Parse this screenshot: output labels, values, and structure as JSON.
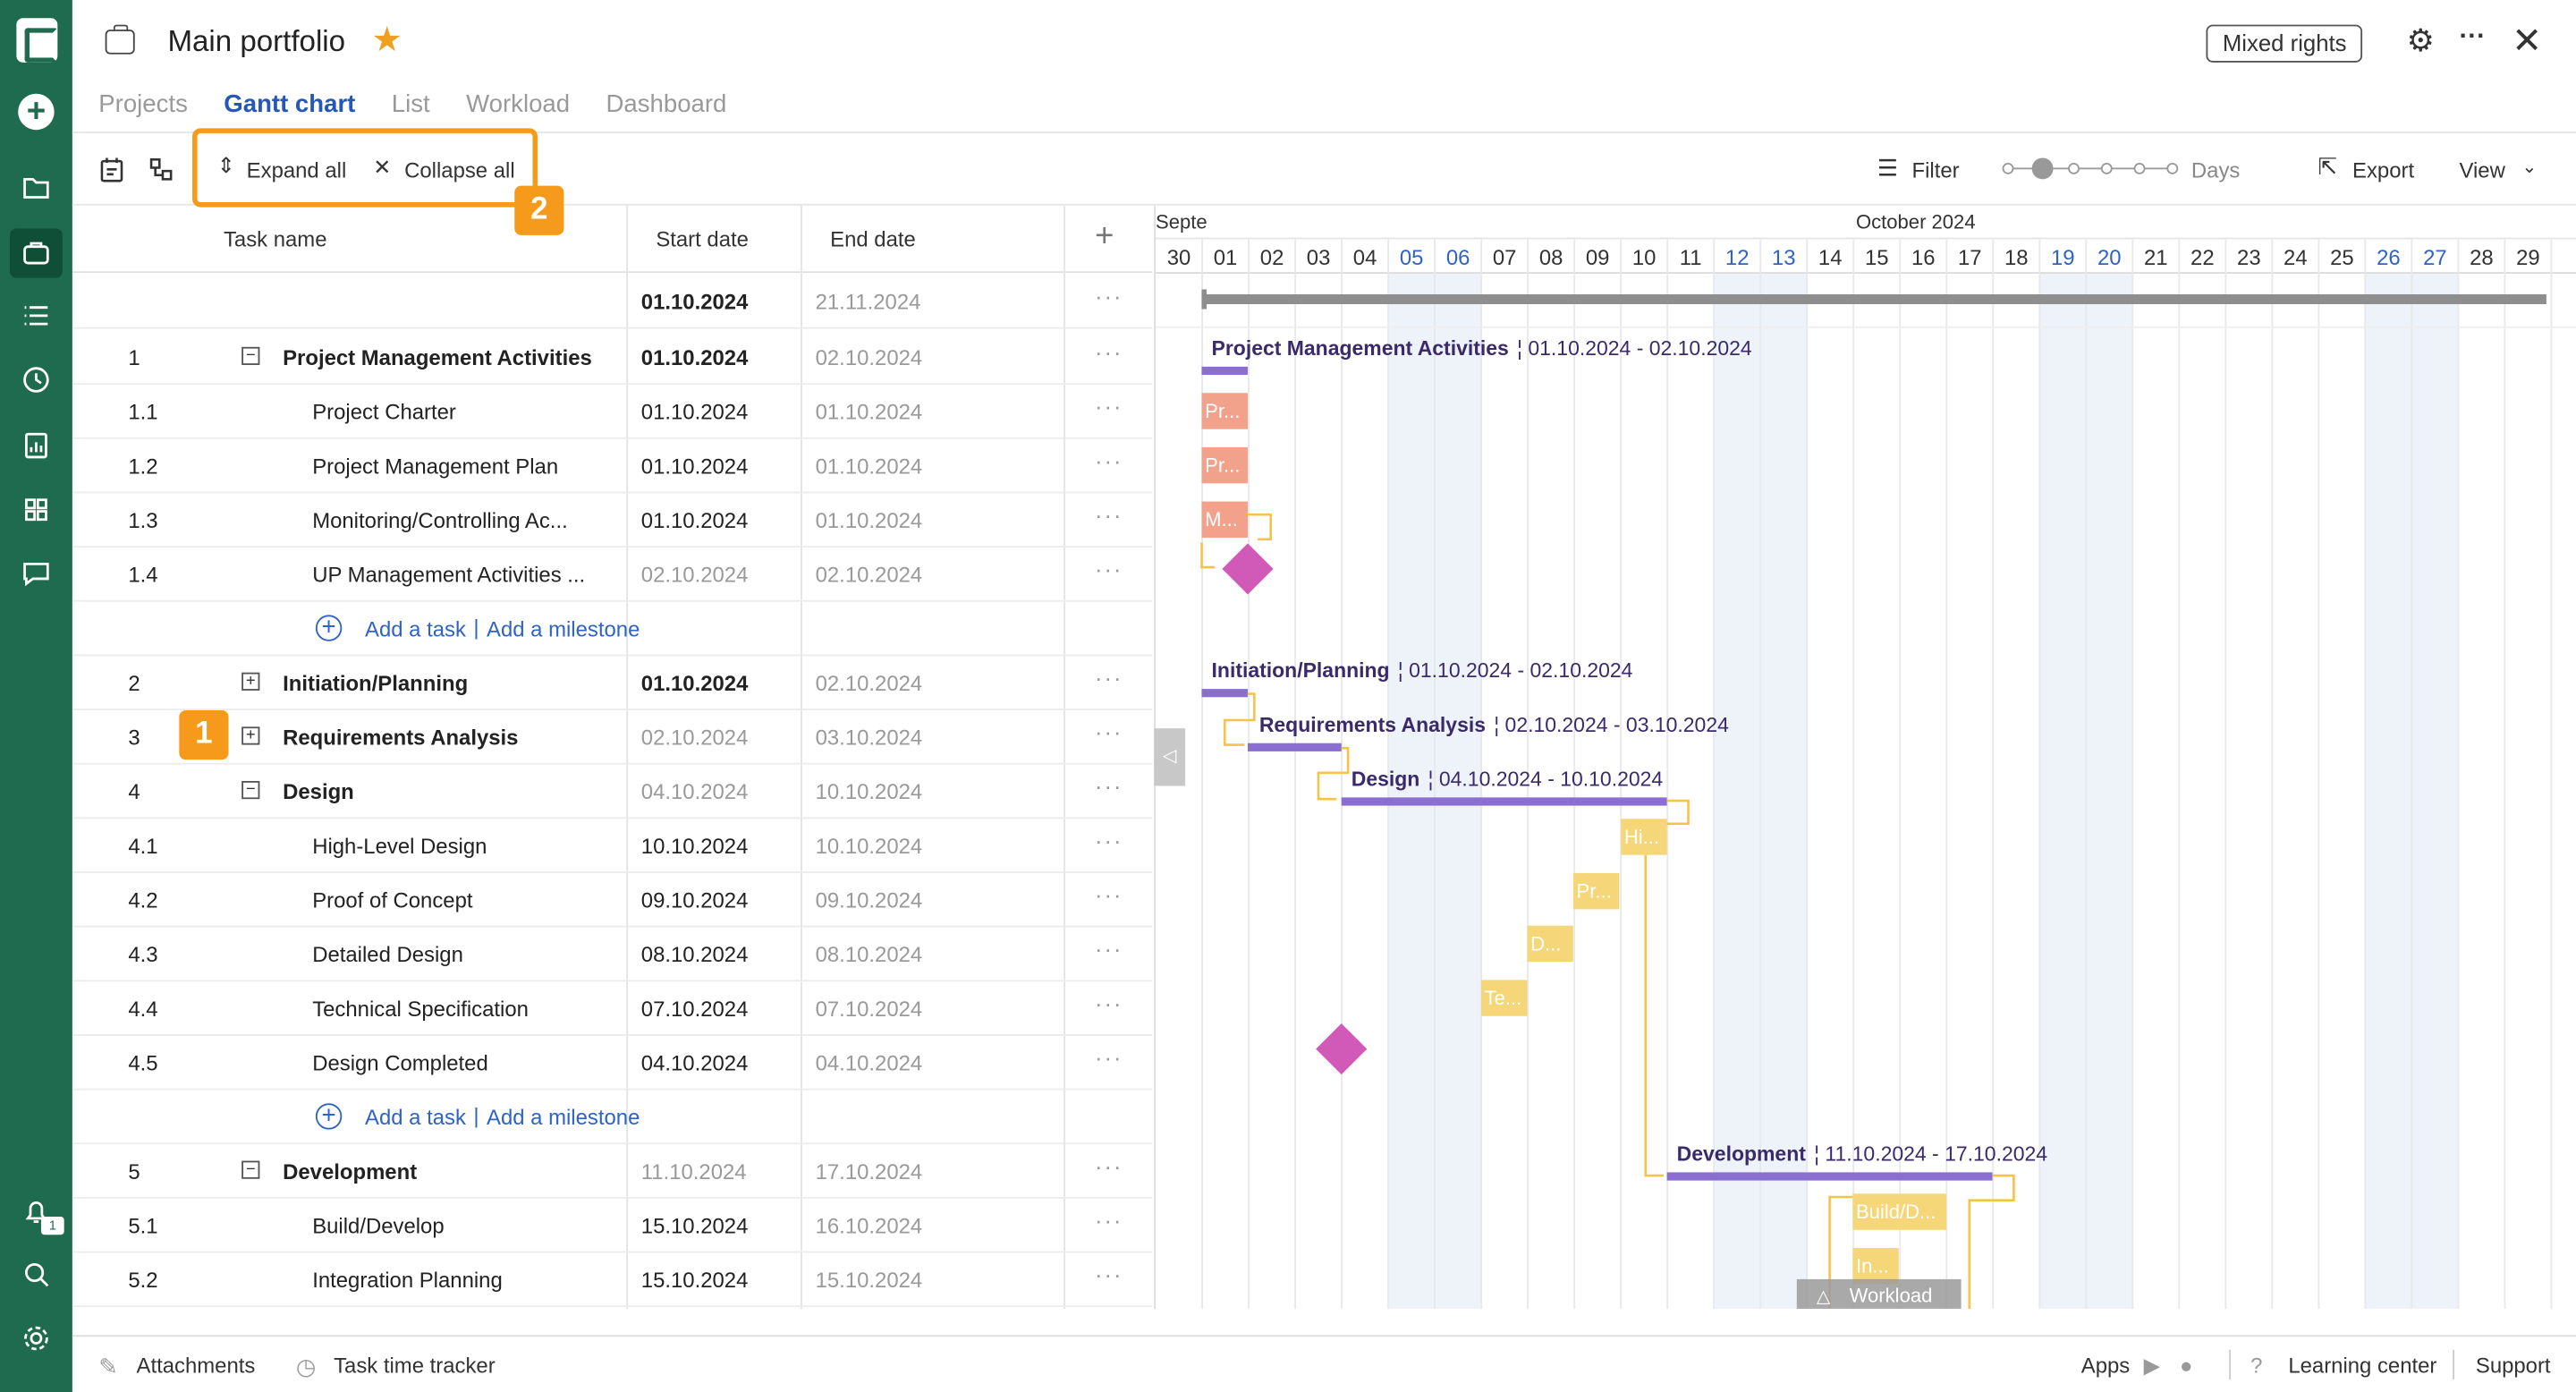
{
  "header": {
    "title": "Main portfolio",
    "rights_label": "Mixed rights",
    "tabs": [
      "Projects",
      "Gantt chart",
      "List",
      "Workload",
      "Dashboard"
    ],
    "active_tab": "Gantt chart"
  },
  "toolbar": {
    "expand_all": "Expand all",
    "collapse_all": "Collapse all",
    "filter": "Filter",
    "scale_label": "Days",
    "export": "Export",
    "view": "View"
  },
  "callouts": [
    "1",
    "2"
  ],
  "grid": {
    "columns": {
      "task_name": "Task name",
      "start_date": "Start date",
      "end_date": "End date"
    },
    "summary_row": {
      "start": "01.10.2024",
      "end": "21.11.2024"
    },
    "rows": [
      {
        "num": "1",
        "name": "Project Management Activities",
        "start": "01.10.2024",
        "end": "02.10.2024",
        "level": 0,
        "toggle": "minus"
      },
      {
        "num": "1.1",
        "name": "Project Charter",
        "start": "01.10.2024",
        "end": "01.10.2024",
        "level": 1
      },
      {
        "num": "1.2",
        "name": "Project Management Plan",
        "start": "01.10.2024",
        "end": "01.10.2024",
        "level": 1
      },
      {
        "num": "1.3",
        "name": "Monitoring/Controlling Ac...",
        "start": "01.10.2024",
        "end": "01.10.2024",
        "level": 1
      },
      {
        "num": "1.4",
        "name": "UP Management Activities ...",
        "start": "02.10.2024",
        "end": "02.10.2024",
        "level": 1,
        "start_gray": true
      },
      {
        "add": true
      },
      {
        "num": "2",
        "name": "Initiation/Planning",
        "start": "01.10.2024",
        "end": "02.10.2024",
        "level": 0,
        "toggle": "plus"
      },
      {
        "num": "3",
        "name": "Requirements Analysis",
        "start": "02.10.2024",
        "end": "03.10.2024",
        "level": 0,
        "toggle": "plus",
        "start_gray": true
      },
      {
        "num": "4",
        "name": "Design",
        "start": "04.10.2024",
        "end": "10.10.2024",
        "level": 0,
        "toggle": "minus",
        "start_gray": true
      },
      {
        "num": "4.1",
        "name": "High-Level Design",
        "start": "10.10.2024",
        "end": "10.10.2024",
        "level": 1
      },
      {
        "num": "4.2",
        "name": "Proof of Concept",
        "start": "09.10.2024",
        "end": "09.10.2024",
        "level": 1
      },
      {
        "num": "4.3",
        "name": "Detailed Design",
        "start": "08.10.2024",
        "end": "08.10.2024",
        "level": 1
      },
      {
        "num": "4.4",
        "name": "Technical Specification",
        "start": "07.10.2024",
        "end": "07.10.2024",
        "level": 1
      },
      {
        "num": "4.5",
        "name": "Design Completed",
        "start": "04.10.2024",
        "end": "04.10.2024",
        "level": 1
      },
      {
        "add": true
      },
      {
        "num": "5",
        "name": "Development",
        "start": "11.10.2024",
        "end": "17.10.2024",
        "level": 0,
        "toggle": "minus",
        "start_gray": true
      },
      {
        "num": "5.1",
        "name": "Build/Develop",
        "start": "15.10.2024",
        "end": "16.10.2024",
        "level": 1
      },
      {
        "num": "5.2",
        "name": "Integration Planning",
        "start": "15.10.2024",
        "end": "15.10.2024",
        "level": 1
      }
    ],
    "add_task": "Add a task",
    "add_milestone": "Add a milestone"
  },
  "gantt": {
    "month_prev": "Septe",
    "month": "October 2024",
    "days": [
      "30",
      "01",
      "02",
      "03",
      "04",
      "05",
      "06",
      "07",
      "08",
      "09",
      "10",
      "11",
      "12",
      "13",
      "14",
      "15",
      "16",
      "17",
      "18",
      "19",
      "20",
      "21",
      "22",
      "23",
      "24",
      "25",
      "26",
      "27",
      "28",
      "29"
    ],
    "weekend_days": [
      "05",
      "06",
      "12",
      "13",
      "19",
      "20",
      "26",
      "27"
    ],
    "bar_labels": {
      "pma_name": "Project Management Activities",
      "pma_dates": "01.10.2024 - 02.10.2024",
      "ip_name": "Initiation/Planning",
      "ip_dates": "01.10.2024 - 02.10.2024",
      "ra_name": "Requirements Analysis",
      "ra_dates": "02.10.2024 - 03.10.2024",
      "des_name": "Design",
      "des_dates": "04.10.2024 - 10.10.2024",
      "dev_name": "Development",
      "dev_dates": "11.10.2024 - 17.10.2024"
    },
    "task_bar_text": [
      "Pr...",
      "Pr...",
      "M...",
      "Hi...",
      "Pr...",
      "D...",
      "Te...",
      "Build/D...",
      "In..."
    ],
    "workload_tab": "Workload",
    "colors": {
      "summary": "#8b6fd0",
      "pm_task": "#f2a28a",
      "design_task": "#f5d678",
      "milestone": "#d15ab8",
      "weekend": "#eef3fa"
    }
  },
  "footer": {
    "attachments": "Attachments",
    "time_tracker": "Task time tracker",
    "apps": "Apps",
    "learning": "Learning center",
    "support": "Support"
  }
}
